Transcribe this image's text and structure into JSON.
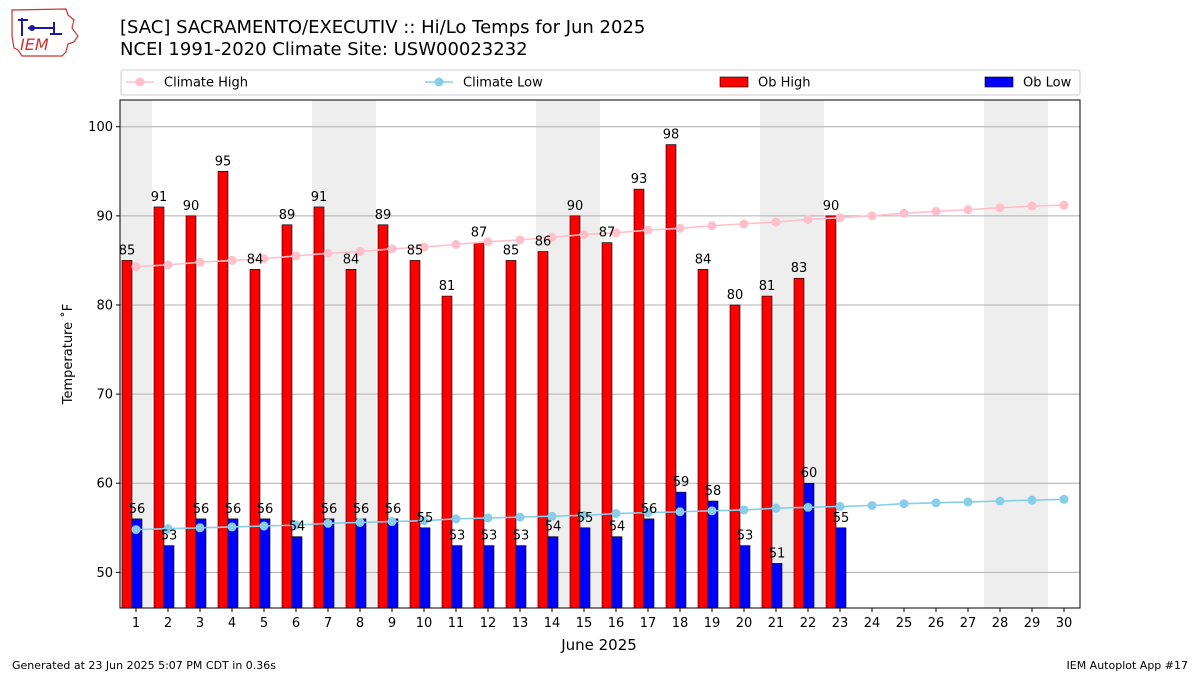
{
  "header": {
    "title_line1": "[SAC] SACRAMENTO/EXECUTIV :: Hi/Lo Temps for Jun 2025",
    "title_line2": "NCEI 1991-2020 Climate Site: USW00023232",
    "logo_text": "IEM"
  },
  "footer": {
    "left": "Generated at 23 Jun 2025 5:07 PM CDT in 0.36s",
    "right": "IEM Autoplot App #17"
  },
  "colors": {
    "ob_high": "#ff0000",
    "ob_low": "#0000ff",
    "climate_high": "#ffc0cb",
    "climate_low": "#87ceeb",
    "weekend_shade": "#eeeeee",
    "grid": "#b0b0b0"
  },
  "chart_data": {
    "type": "bar",
    "title": "[SAC] SACRAMENTO/EXECUTIV :: Hi/Lo Temps for Jun 2025",
    "subtitle": "NCEI 1991-2020 Climate Site: USW00023232",
    "xlabel": "June 2025",
    "ylabel": "Temperature ˚F",
    "ylim": [
      46,
      103
    ],
    "yticks": [
      50,
      60,
      70,
      80,
      90,
      100
    ],
    "grid": true,
    "legend_position": "top",
    "categories": [
      "1",
      "2",
      "3",
      "4",
      "5",
      "6",
      "7",
      "8",
      "9",
      "10",
      "11",
      "12",
      "13",
      "14",
      "15",
      "16",
      "17",
      "18",
      "19",
      "20",
      "21",
      "22",
      "23",
      "24",
      "25",
      "26",
      "27",
      "28",
      "29",
      "30"
    ],
    "shaded_days": [
      1,
      7,
      8,
      14,
      15,
      21,
      22,
      28,
      29
    ],
    "series": [
      {
        "name": "Ob High",
        "kind": "bar",
        "values": [
          85,
          91,
          90,
          95,
          84,
          89,
          91,
          84,
          89,
          85,
          81,
          87,
          85,
          86,
          90,
          87,
          93,
          98,
          84,
          80,
          81,
          83,
          90,
          null,
          null,
          null,
          null,
          null,
          null,
          null
        ]
      },
      {
        "name": "Ob Low",
        "kind": "bar",
        "values": [
          56,
          53,
          56,
          56,
          56,
          54,
          56,
          56,
          56,
          55,
          53,
          53,
          53,
          54,
          55,
          54,
          56,
          59,
          58,
          53,
          51,
          60,
          55,
          null,
          null,
          null,
          null,
          null,
          null,
          null
        ]
      },
      {
        "name": "Climate High",
        "kind": "line",
        "values": [
          84.3,
          84.5,
          84.8,
          85.0,
          85.2,
          85.5,
          85.8,
          86.0,
          86.3,
          86.5,
          86.8,
          87.1,
          87.3,
          87.6,
          87.9,
          88.1,
          88.4,
          88.6,
          88.9,
          89.1,
          89.3,
          89.6,
          89.8,
          90.0,
          90.3,
          90.5,
          90.7,
          90.9,
          91.1,
          91.2
        ]
      },
      {
        "name": "Climate Low",
        "kind": "line",
        "values": [
          54.8,
          54.9,
          55.0,
          55.1,
          55.2,
          55.3,
          55.5,
          55.6,
          55.7,
          55.8,
          56.0,
          56.1,
          56.2,
          56.3,
          56.4,
          56.6,
          56.7,
          56.8,
          56.9,
          57.0,
          57.2,
          57.3,
          57.4,
          57.5,
          57.7,
          57.8,
          57.9,
          58.0,
          58.1,
          58.2
        ]
      }
    ]
  }
}
